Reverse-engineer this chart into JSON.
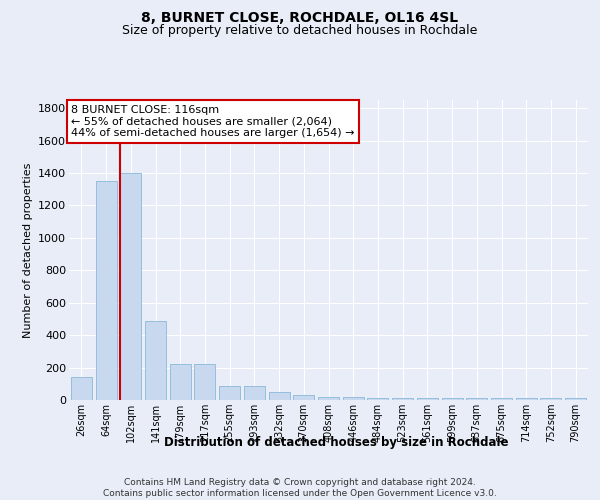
{
  "title": "8, BURNET CLOSE, ROCHDALE, OL16 4SL",
  "subtitle": "Size of property relative to detached houses in Rochdale",
  "xlabel": "Distribution of detached houses by size in Rochdale",
  "ylabel": "Number of detached properties",
  "categories": [
    "26sqm",
    "64sqm",
    "102sqm",
    "141sqm",
    "179sqm",
    "217sqm",
    "255sqm",
    "293sqm",
    "332sqm",
    "370sqm",
    "408sqm",
    "446sqm",
    "484sqm",
    "523sqm",
    "561sqm",
    "599sqm",
    "637sqm",
    "675sqm",
    "714sqm",
    "752sqm",
    "790sqm"
  ],
  "values": [
    140,
    1350,
    1400,
    490,
    225,
    225,
    85,
    85,
    48,
    28,
    20,
    20,
    15,
    15,
    10,
    10,
    10,
    10,
    10,
    10,
    10
  ],
  "bar_color": "#c8d9ef",
  "bar_edge_color": "#7aafd4",
  "background_color": "#e8edf8",
  "grid_color": "#ffffff",
  "red_line_x": 1.575,
  "annotation_line1": "8 BURNET CLOSE: 116sqm",
  "annotation_line2": "← 55% of detached houses are smaller (2,064)",
  "annotation_line3": "44% of semi-detached houses are larger (1,654) →",
  "annotation_box_facecolor": "#ffffff",
  "annotation_box_edgecolor": "#cc0000",
  "ylim": [
    0,
    1850
  ],
  "yticks": [
    0,
    200,
    400,
    600,
    800,
    1000,
    1200,
    1400,
    1600,
    1800
  ],
  "footer_line1": "Contains HM Land Registry data © Crown copyright and database right 2024.",
  "footer_line2": "Contains public sector information licensed under the Open Government Licence v3.0.",
  "title_fontsize": 10,
  "subtitle_fontsize": 9,
  "tick_fontsize": 7,
  "ylabel_fontsize": 8,
  "xlabel_fontsize": 8.5,
  "annotation_fontsize": 8,
  "footer_fontsize": 6.5
}
